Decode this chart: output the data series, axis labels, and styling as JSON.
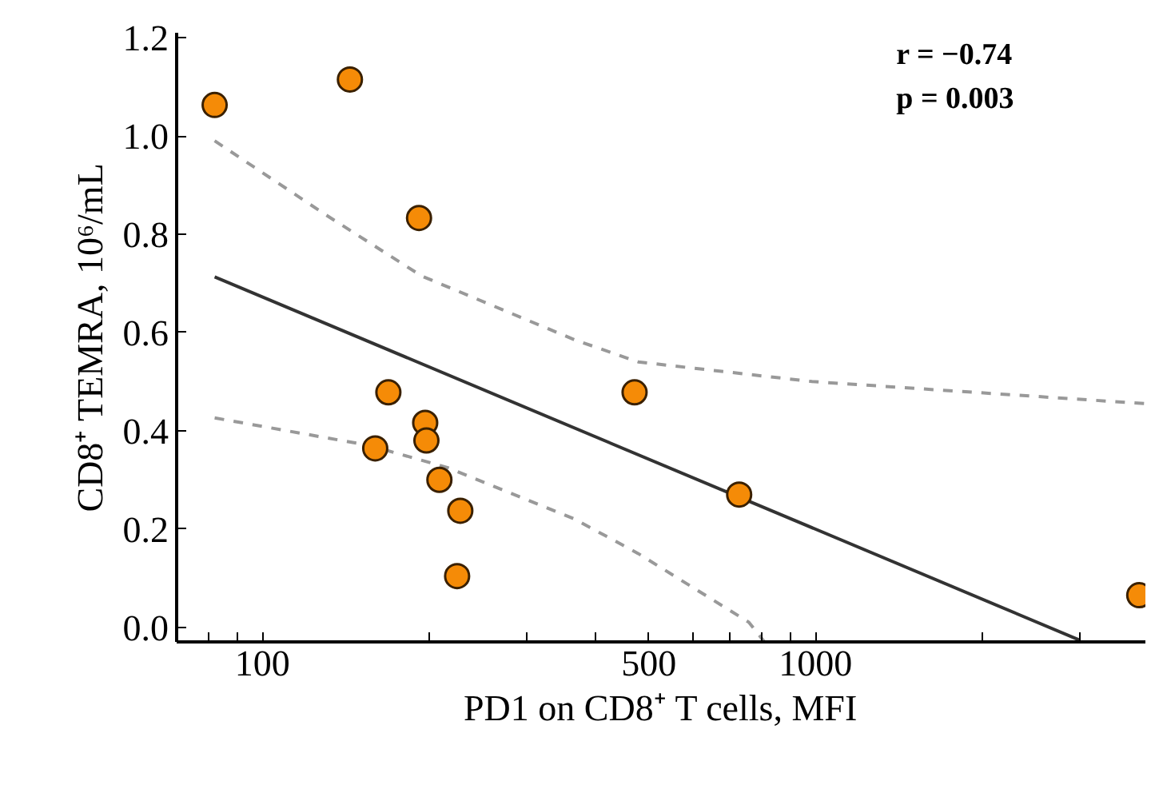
{
  "chart_data": {
    "type": "scatter",
    "xlabel": "PD1 on CD8⁺ T cells, MFI",
    "ylabel": "CD8⁺ TEMRA, 10⁶/mL",
    "log": "x",
    "grid": false,
    "annotations": [
      "r =  −0.74",
      "p =    0.003"
    ],
    "xlim": [
      70,
      3950
    ],
    "ylim": [
      -0.03,
      1.21
    ],
    "xticks": [
      {
        "value": 80,
        "label": null
      },
      {
        "value": 90,
        "label": null
      },
      100,
      {
        "value": 200,
        "label": null
      },
      {
        "value": 300,
        "label": null
      },
      {
        "value": 400,
        "label": null
      },
      500,
      {
        "value": 600,
        "label": null
      },
      {
        "value": 700,
        "label": null
      },
      {
        "value": 800,
        "label": null
      },
      {
        "value": 900,
        "label": null
      },
      1000,
      {
        "value": 2000,
        "label": null
      },
      {
        "value": 3000,
        "label": null
      }
    ],
    "yticks": [
      {
        "value": 0,
        "label": "0.0"
      },
      0.2,
      0.4,
      0.6,
      0.8,
      {
        "value": 1,
        "label": "1.0"
      },
      1.2
    ],
    "series": [
      {
        "type": "line",
        "color": "#999999",
        "line_style": "dashed",
        "marker": "none",
        "x": [
          82,
          130,
          194,
          367,
          478,
          986,
          3950
        ],
        "values": [
          0.99,
          0.84,
          0.715,
          0.585,
          0.54,
          0.5,
          0.455
        ]
      },
      {
        "type": "line",
        "color": "#999999",
        "line_style": "dashed",
        "marker": "none",
        "x": [
          82,
          156,
          216,
          367,
          478,
          758,
          809
        ],
        "values": [
          0.426,
          0.37,
          0.325,
          0.22,
          0.15,
          0.01,
          -0.03
        ]
      },
      {
        "type": "line",
        "color": "#333333",
        "line_style": "solid",
        "marker": "none",
        "x": [
          82,
          3000
        ],
        "values": [
          0.713,
          -0.026
        ]
      },
      {
        "color": "#f58b07",
        "marker": "circle",
        "x": [
          82,
          144,
          192,
          169,
          160,
          197,
          198,
          209,
          228,
          225,
          471,
          728,
          3850
        ],
        "values": [
          1.063,
          1.115,
          0.833,
          0.478,
          0.364,
          0.416,
          0.38,
          0.3,
          0.237,
          0.104,
          0.478,
          0.27,
          0.065
        ]
      }
    ]
  }
}
